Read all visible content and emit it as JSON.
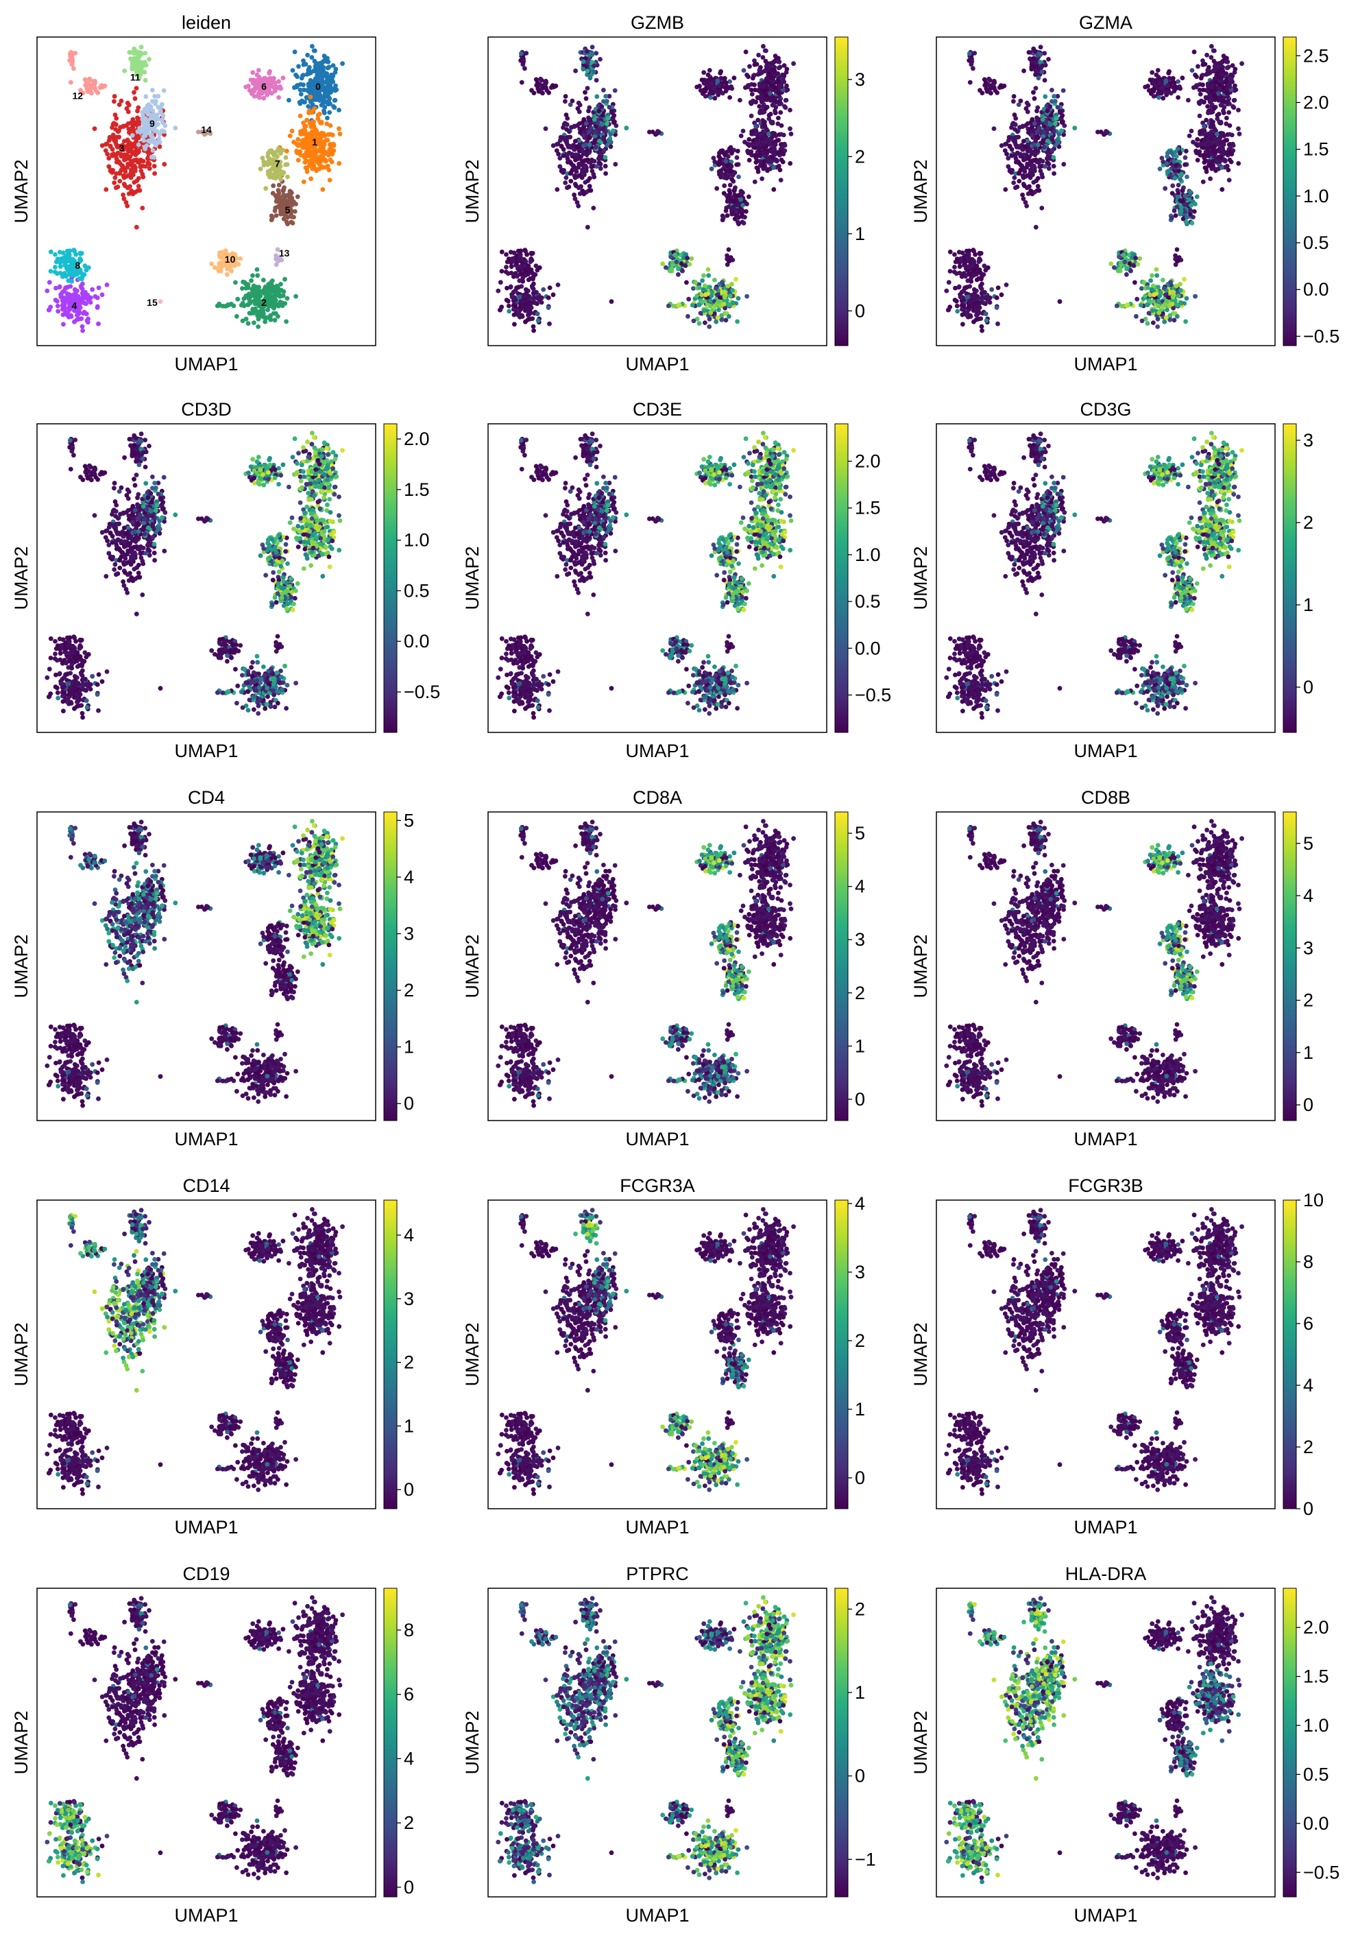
{
  "figure": {
    "xlabel": "UMAP1",
    "ylabel": "UMAP2"
  },
  "chart_data": [
    {
      "type": "scatter",
      "title": "leiden",
      "color_mode": "categorical",
      "categories": [
        "0",
        "1",
        "2",
        "3",
        "4",
        "5",
        "6",
        "7",
        "8",
        "9",
        "10",
        "11",
        "12",
        "13",
        "14",
        "15"
      ],
      "category_colors": [
        "#1f77b4",
        "#ff7f0e",
        "#279e68",
        "#d62728",
        "#aa40fc",
        "#8c564b",
        "#e377c2",
        "#b5bd61",
        "#17becf",
        "#aec7e8",
        "#ffbb78",
        "#98df8a",
        "#ff9896",
        "#c5b0d5",
        "#c49c94",
        "#f7b6d2"
      ],
      "xlabel": "UMAP1",
      "ylabel": "UMAP2"
    },
    {
      "type": "scatter",
      "title": "GZMB",
      "color_mode": "continuous",
      "colormap": "viridis",
      "clim": [
        -0.45,
        3.55
      ],
      "colorbar_ticks": [
        "0",
        "1",
        "2",
        "3"
      ],
      "colorbar_tick_values": [
        0,
        1,
        2,
        3
      ],
      "high_clusters": [
        "2",
        "10"
      ],
      "mid_clusters": [
        "11",
        "9"
      ],
      "xlabel": "UMAP1",
      "ylabel": "UMAP2"
    },
    {
      "type": "scatter",
      "title": "GZMA",
      "color_mode": "continuous",
      "colormap": "viridis",
      "clim": [
        -0.6,
        2.7
      ],
      "colorbar_ticks": [
        "−0.5",
        "0.0",
        "0.5",
        "1.0",
        "1.5",
        "2.0",
        "2.5"
      ],
      "colorbar_tick_values": [
        -0.5,
        0,
        0.5,
        1,
        1.5,
        2,
        2.5
      ],
      "high_clusters": [
        "2",
        "10"
      ],
      "mid_clusters": [
        "7",
        "5",
        "9"
      ],
      "xlabel": "UMAP1",
      "ylabel": "UMAP2"
    },
    {
      "type": "scatter",
      "title": "CD3D",
      "color_mode": "continuous",
      "colormap": "viridis",
      "clim": [
        -0.9,
        2.15
      ],
      "colorbar_ticks": [
        "−0.5",
        "0.0",
        "0.5",
        "1.0",
        "1.5",
        "2.0"
      ],
      "colorbar_tick_values": [
        -0.5,
        0,
        0.5,
        1,
        1.5,
        2
      ],
      "high_clusters": [
        "0",
        "1",
        "6",
        "7",
        "5"
      ],
      "mid_clusters": [
        "9",
        "2"
      ],
      "xlabel": "UMAP1",
      "ylabel": "UMAP2"
    },
    {
      "type": "scatter",
      "title": "CD3E",
      "color_mode": "continuous",
      "colormap": "viridis",
      "clim": [
        -0.9,
        2.4
      ],
      "colorbar_ticks": [
        "−0.5",
        "0.0",
        "0.5",
        "1.0",
        "1.5",
        "2.0"
      ],
      "colorbar_tick_values": [
        -0.5,
        0,
        0.5,
        1,
        1.5,
        2
      ],
      "high_clusters": [
        "0",
        "1",
        "6",
        "7",
        "5"
      ],
      "mid_clusters": [
        "2",
        "10",
        "9"
      ],
      "xlabel": "UMAP1",
      "ylabel": "UMAP2"
    },
    {
      "type": "scatter",
      "title": "CD3G",
      "color_mode": "continuous",
      "colormap": "viridis",
      "clim": [
        -0.55,
        3.2
      ],
      "colorbar_ticks": [
        "0",
        "1",
        "2",
        "3"
      ],
      "colorbar_tick_values": [
        0,
        1,
        2,
        3
      ],
      "high_clusters": [
        "0",
        "1",
        "6",
        "7",
        "5"
      ],
      "mid_clusters": [
        "9",
        "2"
      ],
      "xlabel": "UMAP1",
      "ylabel": "UMAP2"
    },
    {
      "type": "scatter",
      "title": "CD4",
      "color_mode": "continuous",
      "colormap": "viridis",
      "clim": [
        -0.3,
        5.15
      ],
      "colorbar_ticks": [
        "0",
        "1",
        "2",
        "3",
        "4",
        "5"
      ],
      "colorbar_tick_values": [
        0,
        1,
        2,
        3,
        4,
        5
      ],
      "high_clusters": [
        "0",
        "1"
      ],
      "mid_clusters": [
        "3",
        "9",
        "12",
        "6"
      ],
      "xlabel": "UMAP1",
      "ylabel": "UMAP2"
    },
    {
      "type": "scatter",
      "title": "CD8A",
      "color_mode": "continuous",
      "colormap": "viridis",
      "clim": [
        -0.4,
        5.4
      ],
      "colorbar_ticks": [
        "0",
        "1",
        "2",
        "3",
        "4",
        "5"
      ],
      "colorbar_tick_values": [
        0,
        1,
        2,
        3,
        4,
        5
      ],
      "high_clusters": [
        "6",
        "7",
        "5"
      ],
      "mid_clusters": [
        "2",
        "10"
      ],
      "xlabel": "UMAP1",
      "ylabel": "UMAP2"
    },
    {
      "type": "scatter",
      "title": "CD8B",
      "color_mode": "continuous",
      "colormap": "viridis",
      "clim": [
        -0.3,
        5.6
      ],
      "colorbar_ticks": [
        "0",
        "1",
        "2",
        "3",
        "4",
        "5"
      ],
      "colorbar_tick_values": [
        0,
        1,
        2,
        3,
        4,
        5
      ],
      "high_clusters": [
        "6",
        "7",
        "5"
      ],
      "mid_clusters": [],
      "xlabel": "UMAP1",
      "ylabel": "UMAP2"
    },
    {
      "type": "scatter",
      "title": "CD14",
      "color_mode": "continuous",
      "colormap": "viridis",
      "clim": [
        -0.3,
        4.55
      ],
      "colorbar_ticks": [
        "0",
        "1",
        "2",
        "3",
        "4"
      ],
      "colorbar_tick_values": [
        0,
        1,
        2,
        3,
        4
      ],
      "high_clusters": [
        "3",
        "12"
      ],
      "mid_clusters": [
        "9",
        "11"
      ],
      "xlabel": "UMAP1",
      "ylabel": "UMAP2"
    },
    {
      "type": "scatter",
      "title": "FCGR3A",
      "color_mode": "continuous",
      "colormap": "viridis",
      "clim": [
        -0.45,
        4.05
      ],
      "colorbar_ticks": [
        "0",
        "1",
        "2",
        "3",
        "4"
      ],
      "colorbar_tick_values": [
        0,
        1,
        2,
        3,
        4
      ],
      "high_clusters": [
        "11",
        "2",
        "10"
      ],
      "mid_clusters": [
        "9",
        "5"
      ],
      "xlabel": "UMAP1",
      "ylabel": "UMAP2"
    },
    {
      "type": "scatter",
      "title": "FCGR3B",
      "color_mode": "continuous",
      "colormap": "viridis",
      "clim": [
        0,
        10
      ],
      "colorbar_ticks": [
        "0",
        "2",
        "4",
        "6",
        "8",
        "10"
      ],
      "colorbar_tick_values": [
        0,
        2,
        4,
        6,
        8,
        10
      ],
      "high_clusters": [],
      "mid_clusters": [],
      "xlabel": "UMAP1",
      "ylabel": "UMAP2"
    },
    {
      "type": "scatter",
      "title": "CD19",
      "color_mode": "continuous",
      "colormap": "viridis",
      "clim": [
        -0.3,
        9.3
      ],
      "colorbar_ticks": [
        "0",
        "2",
        "4",
        "6",
        "8"
      ],
      "colorbar_tick_values": [
        0,
        2,
        4,
        6,
        8
      ],
      "high_clusters": [
        "4",
        "8"
      ],
      "mid_clusters": [],
      "xlabel": "UMAP1",
      "ylabel": "UMAP2"
    },
    {
      "type": "scatter",
      "title": "PTPRC",
      "color_mode": "continuous",
      "colormap": "viridis",
      "clim": [
        -1.45,
        2.25
      ],
      "colorbar_ticks": [
        "−1",
        "0",
        "1",
        "2"
      ],
      "colorbar_tick_values": [
        -1,
        0,
        1,
        2
      ],
      "high_clusters": [
        "0",
        "1",
        "2",
        "5",
        "7"
      ],
      "mid_clusters": [
        "3",
        "9",
        "4",
        "8",
        "6",
        "10",
        "11",
        "12"
      ],
      "xlabel": "UMAP1",
      "ylabel": "UMAP2"
    },
    {
      "type": "scatter",
      "title": "HLA-DRA",
      "color_mode": "continuous",
      "colormap": "viridis",
      "clim": [
        -0.75,
        2.4
      ],
      "colorbar_ticks": [
        "−0.5",
        "0.0",
        "0.5",
        "1.0",
        "1.5",
        "2.0"
      ],
      "colorbar_tick_values": [
        -0.5,
        0,
        0.5,
        1,
        1.5,
        2
      ],
      "high_clusters": [
        "4",
        "8",
        "12",
        "3",
        "9",
        "11"
      ],
      "mid_clusters": [
        "5",
        "1"
      ],
      "xlabel": "UMAP1",
      "ylabel": "UMAP2"
    }
  ]
}
